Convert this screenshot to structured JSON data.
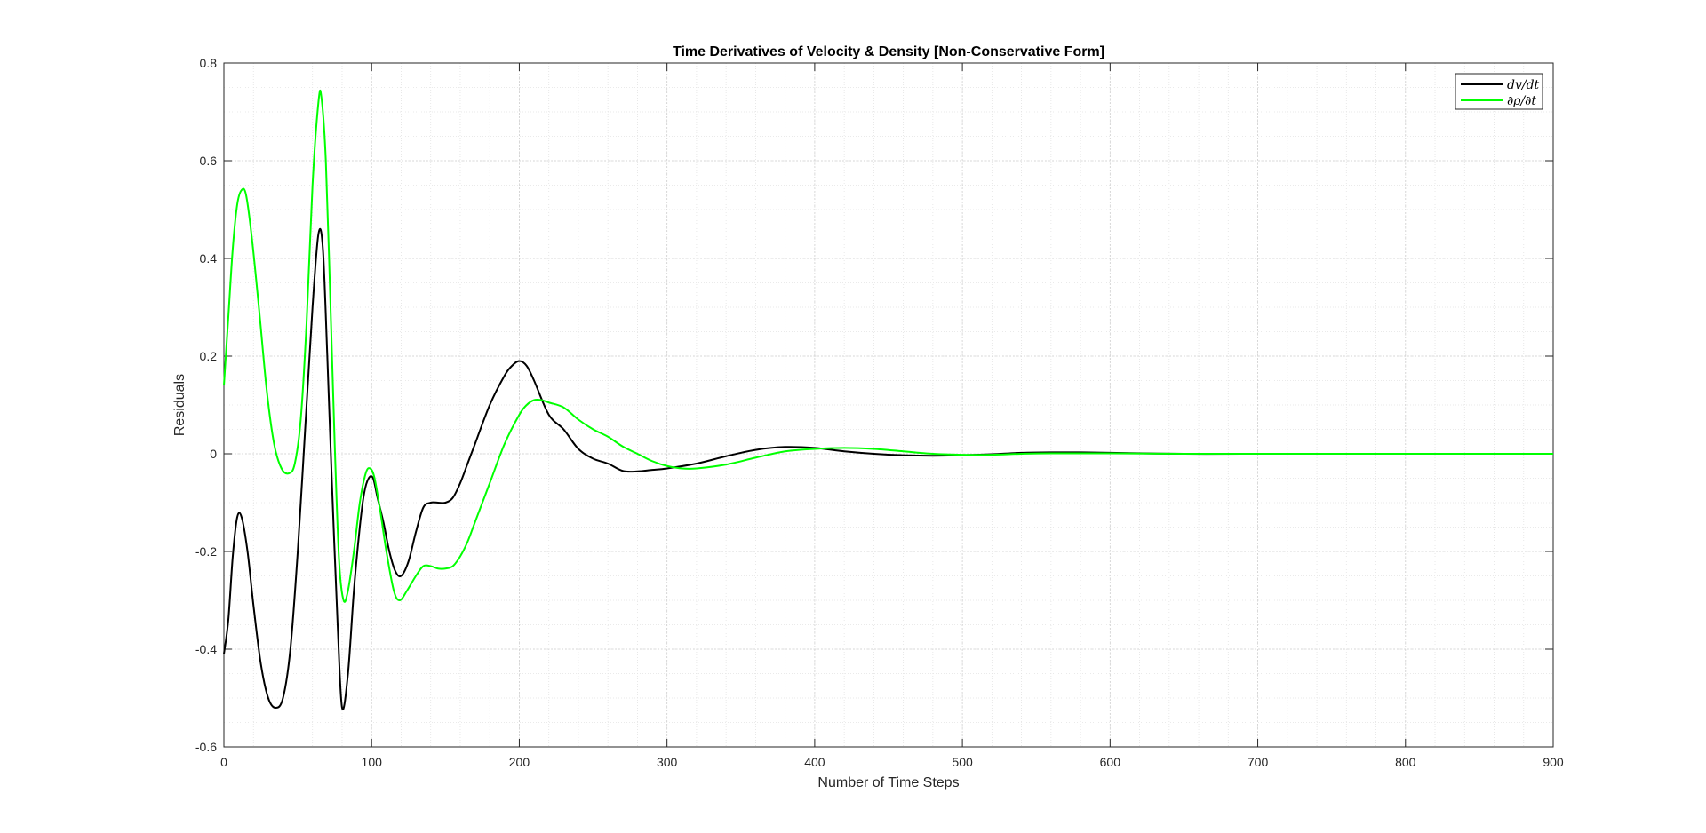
{
  "chart_data": {
    "type": "line",
    "title": "Time Derivatives of Velocity & Density [Non-Conservative Form]",
    "xlabel": "Number of Time Steps",
    "ylabel": "Residuals",
    "xlim": [
      0,
      900
    ],
    "ylim": [
      -0.6,
      0.8
    ],
    "xticks": [
      0,
      100,
      200,
      300,
      400,
      500,
      600,
      700,
      800,
      900
    ],
    "xtick_labels": [
      "0",
      "100",
      "200",
      "300",
      "400",
      "500",
      "600",
      "700",
      "800",
      "900"
    ],
    "yticks": [
      -0.6,
      -0.4,
      -0.2,
      0,
      0.2,
      0.4,
      0.6,
      0.8
    ],
    "ytick_labels": [
      "-0.6",
      "-0.4",
      "-0.2",
      "0",
      "0.2",
      "0.4",
      "0.6",
      "0.8"
    ],
    "grid": true,
    "minor_grid": true,
    "legend_position": "top-right",
    "series": [
      {
        "name": "dv/dt",
        "color": "#000000",
        "points": [
          [
            0,
            -0.41
          ],
          [
            3,
            -0.34
          ],
          [
            6,
            -0.21
          ],
          [
            9,
            -0.13
          ],
          [
            12,
            -0.13
          ],
          [
            16,
            -0.2
          ],
          [
            20,
            -0.31
          ],
          [
            25,
            -0.43
          ],
          [
            30,
            -0.5
          ],
          [
            35,
            -0.52
          ],
          [
            40,
            -0.5
          ],
          [
            45,
            -0.4
          ],
          [
            50,
            -0.2
          ],
          [
            55,
            0.05
          ],
          [
            60,
            0.3
          ],
          [
            64,
            0.45
          ],
          [
            67,
            0.42
          ],
          [
            70,
            0.2
          ],
          [
            73,
            -0.05
          ],
          [
            77,
            -0.35
          ],
          [
            80,
            -0.52
          ],
          [
            84,
            -0.45
          ],
          [
            88,
            -0.28
          ],
          [
            92,
            -0.15
          ],
          [
            95,
            -0.08
          ],
          [
            98,
            -0.05
          ],
          [
            101,
            -0.05
          ],
          [
            104,
            -0.09
          ],
          [
            108,
            -0.14
          ],
          [
            112,
            -0.2
          ],
          [
            116,
            -0.24
          ],
          [
            120,
            -0.25
          ],
          [
            125,
            -0.22
          ],
          [
            130,
            -0.16
          ],
          [
            135,
            -0.11
          ],
          [
            140,
            -0.1
          ],
          [
            145,
            -0.1
          ],
          [
            150,
            -0.1
          ],
          [
            155,
            -0.09
          ],
          [
            160,
            -0.06
          ],
          [
            165,
            -0.02
          ],
          [
            170,
            0.02
          ],
          [
            180,
            0.1
          ],
          [
            190,
            0.16
          ],
          [
            195,
            0.18
          ],
          [
            200,
            0.19
          ],
          [
            205,
            0.18
          ],
          [
            210,
            0.15
          ],
          [
            220,
            0.08
          ],
          [
            230,
            0.05
          ],
          [
            240,
            0.01
          ],
          [
            250,
            -0.01
          ],
          [
            260,
            -0.02
          ],
          [
            270,
            -0.035
          ],
          [
            280,
            -0.036
          ],
          [
            290,
            -0.033
          ],
          [
            300,
            -0.03
          ],
          [
            320,
            -0.02
          ],
          [
            340,
            -0.005
          ],
          [
            360,
            0.008
          ],
          [
            380,
            0.014
          ],
          [
            400,
            0.012
          ],
          [
            420,
            0.005
          ],
          [
            440,
            0.0
          ],
          [
            460,
            -0.003
          ],
          [
            480,
            -0.004
          ],
          [
            500,
            -0.003
          ],
          [
            520,
            -0.001
          ],
          [
            540,
            0.002
          ],
          [
            560,
            0.003
          ],
          [
            580,
            0.003
          ],
          [
            600,
            0.002
          ],
          [
            650,
            0.0
          ],
          [
            700,
            0.0
          ],
          [
            800,
            0.0
          ],
          [
            900,
            0.0
          ]
        ]
      },
      {
        "name": "∂ρ/∂t",
        "color": "#00ff00",
        "points": [
          [
            0,
            0.14
          ],
          [
            3,
            0.28
          ],
          [
            6,
            0.42
          ],
          [
            9,
            0.51
          ],
          [
            12,
            0.54
          ],
          [
            15,
            0.53
          ],
          [
            19,
            0.44
          ],
          [
            24,
            0.29
          ],
          [
            29,
            0.13
          ],
          [
            34,
            0.02
          ],
          [
            39,
            -0.03
          ],
          [
            44,
            -0.04
          ],
          [
            48,
            -0.02
          ],
          [
            52,
            0.07
          ],
          [
            56,
            0.27
          ],
          [
            60,
            0.55
          ],
          [
            64,
            0.72
          ],
          [
            66,
            0.73
          ],
          [
            69,
            0.6
          ],
          [
            72,
            0.32
          ],
          [
            75,
            0.02
          ],
          [
            78,
            -0.22
          ],
          [
            81,
            -0.3
          ],
          [
            84,
            -0.28
          ],
          [
            88,
            -0.2
          ],
          [
            92,
            -0.1
          ],
          [
            96,
            -0.04
          ],
          [
            99,
            -0.03
          ],
          [
            102,
            -0.05
          ],
          [
            106,
            -0.12
          ],
          [
            110,
            -0.2
          ],
          [
            115,
            -0.28
          ],
          [
            119,
            -0.3
          ],
          [
            124,
            -0.28
          ],
          [
            130,
            -0.25
          ],
          [
            135,
            -0.23
          ],
          [
            140,
            -0.23
          ],
          [
            145,
            -0.235
          ],
          [
            150,
            -0.235
          ],
          [
            155,
            -0.23
          ],
          [
            160,
            -0.21
          ],
          [
            165,
            -0.18
          ],
          [
            170,
            -0.14
          ],
          [
            180,
            -0.06
          ],
          [
            190,
            0.02
          ],
          [
            200,
            0.08
          ],
          [
            205,
            0.1
          ],
          [
            210,
            0.11
          ],
          [
            215,
            0.11
          ],
          [
            220,
            0.105
          ],
          [
            230,
            0.095
          ],
          [
            240,
            0.07
          ],
          [
            250,
            0.05
          ],
          [
            260,
            0.035
          ],
          [
            270,
            0.015
          ],
          [
            280,
            0.0
          ],
          [
            290,
            -0.015
          ],
          [
            300,
            -0.025
          ],
          [
            310,
            -0.03
          ],
          [
            320,
            -0.03
          ],
          [
            340,
            -0.022
          ],
          [
            360,
            -0.008
          ],
          [
            380,
            0.005
          ],
          [
            400,
            0.01
          ],
          [
            420,
            0.012
          ],
          [
            440,
            0.01
          ],
          [
            460,
            0.005
          ],
          [
            480,
            0.0
          ],
          [
            500,
            -0.002
          ],
          [
            520,
            -0.002
          ],
          [
            540,
            0.0
          ],
          [
            560,
            0.001
          ],
          [
            600,
            0.001
          ],
          [
            650,
            0.0
          ],
          [
            700,
            0.0
          ],
          [
            800,
            0.0
          ],
          [
            900,
            0.0
          ]
        ]
      }
    ]
  }
}
